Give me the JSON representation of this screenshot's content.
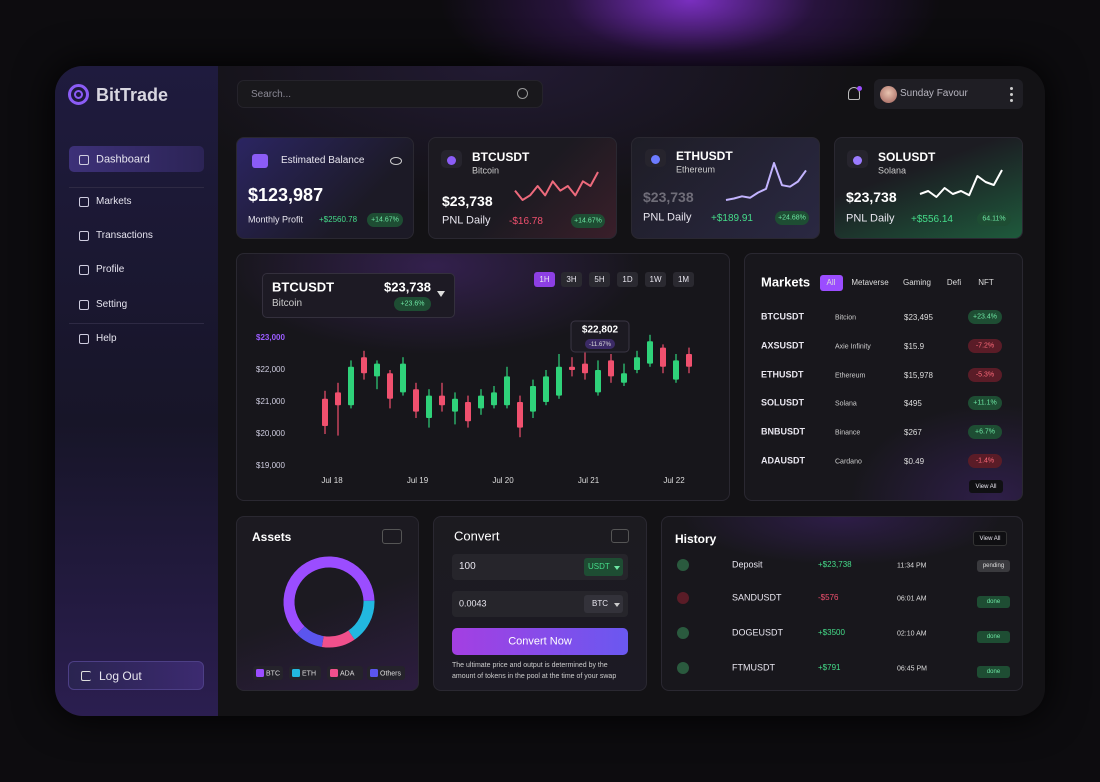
{
  "brand": "BitTrade",
  "search_placeholder": "Search...",
  "user_name": "Sunday Favour",
  "nav": [
    "Dashboard",
    "Markets",
    "Transactions",
    "Profile",
    "Setting",
    "Help"
  ],
  "logout": "Log Out",
  "balance": {
    "title": "Estimated Balance",
    "amount": "$123,987",
    "label": "Monthly Profit",
    "profit": "+$2560.78",
    "change": "+14.67%"
  },
  "tickers": [
    {
      "symbol": "BTCUSDT",
      "name": "Bitcoin",
      "price": "$23,738",
      "label": "PNL Daily",
      "pnl": "-$16.78",
      "change": "+14.67%"
    },
    {
      "symbol": "ETHUSDT",
      "name": "Ethereum",
      "price": "$23,738",
      "label": "PNL Daily",
      "pnl": "+$189.91",
      "change": "+24.68%"
    },
    {
      "symbol": "SOLUSDT",
      "name": "Solana",
      "price": "$23,738",
      "label": "PNL Daily",
      "pnl": "+$556.14",
      "change": "64.11%"
    }
  ],
  "chart_panel": {
    "symbol": "BTCUSDT",
    "name": "Bitcoin",
    "price": "$23,738",
    "change": "+23.6%",
    "ranges": [
      "1H",
      "3H",
      "5H",
      "1D",
      "1W",
      "1M"
    ],
    "tooltip_price": "$22,802",
    "tooltip_change": "-11.67%"
  },
  "markets": {
    "title": "Markets",
    "tabs": [
      "All",
      "Metaverse",
      "Gaming",
      "Defi",
      "NFT"
    ],
    "rows": [
      [
        "BTCUSDT",
        "Bitcion",
        "$23,495",
        "+23.4%"
      ],
      [
        "AXSUSDT",
        "Axie Infinity",
        "$15.9",
        "-7.2%"
      ],
      [
        "ETHUSDT",
        "Ethereum",
        "$15,978",
        "-5.3%"
      ],
      [
        "SOLUSDT",
        "Solana",
        "$495",
        "+11.1%"
      ],
      [
        "BNBUSDT",
        "Binance",
        "$267",
        "+6.7%"
      ],
      [
        "ADAUSDT",
        "Cardano",
        "$0.49",
        "-1.4%"
      ]
    ],
    "view_all": "View All"
  },
  "assets": {
    "title": "Assets"
  },
  "convert": {
    "title": "Convert",
    "amount_from": "100",
    "currency_from": "USDT",
    "amount_to": "0.0043",
    "currency_to": "BTC",
    "button": "Convert Now",
    "note": "The ultimate price and output is determined by the amount of tokens in the pool at the time of your swap"
  },
  "history": {
    "title": "History",
    "view_all": "View All",
    "rows": [
      [
        "Deposit",
        "+$23,738",
        "11:34 PM",
        "pending"
      ],
      [
        "SANDUSDT",
        "-$576",
        "06:01 AM",
        "done"
      ],
      [
        "DOGEUSDT",
        "+$3500",
        "02:10 AM",
        "done"
      ],
      [
        "FTMUSDT",
        "+$791",
        "06:45 PM",
        "done"
      ]
    ]
  },
  "chart_data": [
    {
      "type": "candlestick",
      "ylim": [
        19000,
        23000
      ],
      "yticks": [
        {
          "value": 19000,
          "label": "$19,000"
        },
        {
          "value": 20000,
          "label": "$20,000"
        },
        {
          "value": 21000,
          "label": "$21,000"
        },
        {
          "value": 22000,
          "label": "$22,000"
        },
        {
          "value": 23000,
          "label": "$23,000"
        }
      ],
      "x_labels": [
        "Jul 18",
        "Jul 19",
        "Jul 20",
        "Jul 21",
        "Jul 22"
      ],
      "up_color": "#2fd27a",
      "down_color": "#f0506e",
      "candles": [
        {
          "open": 21100,
          "high": 21350,
          "low": 20000,
          "close": 20250
        },
        {
          "open": 21300,
          "high": 21600,
          "low": 19950,
          "close": 20900
        },
        {
          "open": 20900,
          "high": 22300,
          "low": 20800,
          "close": 22100
        },
        {
          "open": 22400,
          "high": 22600,
          "low": 21700,
          "close": 21900
        },
        {
          "open": 21800,
          "high": 22300,
          "low": 21400,
          "close": 22200
        },
        {
          "open": 21900,
          "high": 22000,
          "low": 20800,
          "close": 21100
        },
        {
          "open": 21300,
          "high": 22400,
          "low": 21200,
          "close": 22200
        },
        {
          "open": 21400,
          "high": 21600,
          "low": 20500,
          "close": 20700
        },
        {
          "open": 20500,
          "high": 21400,
          "low": 20200,
          "close": 21200
        },
        {
          "open": 21200,
          "high": 21600,
          "low": 20700,
          "close": 20900
        },
        {
          "open": 20700,
          "high": 21300,
          "low": 20300,
          "close": 21100
        },
        {
          "open": 21000,
          "high": 21200,
          "low": 20200,
          "close": 20400
        },
        {
          "open": 20800,
          "high": 21400,
          "low": 20600,
          "close": 21200
        },
        {
          "open": 20900,
          "high": 21500,
          "low": 20800,
          "close": 21300
        },
        {
          "open": 20900,
          "high": 22100,
          "low": 20800,
          "close": 21800
        },
        {
          "open": 21000,
          "high": 21200,
          "low": 19900,
          "close": 20200
        },
        {
          "open": 20700,
          "high": 21700,
          "low": 20500,
          "close": 21500
        },
        {
          "open": 21000,
          "high": 22000,
          "low": 20900,
          "close": 21800
        },
        {
          "open": 21200,
          "high": 22500,
          "low": 21100,
          "close": 22100
        },
        {
          "open": 22100,
          "high": 22400,
          "low": 21800,
          "close": 22000
        },
        {
          "open": 22200,
          "high": 22600,
          "low": 21700,
          "close": 21900
        },
        {
          "open": 21300,
          "high": 22300,
          "low": 21200,
          "close": 22000
        },
        {
          "open": 22300,
          "high": 22500,
          "low": 21600,
          "close": 21800
        },
        {
          "open": 21600,
          "high": 22200,
          "low": 21500,
          "close": 21900
        },
        {
          "open": 22000,
          "high": 22600,
          "low": 21900,
          "close": 22400
        },
        {
          "open": 22200,
          "high": 23100,
          "low": 22100,
          "close": 22900
        },
        {
          "open": 22700,
          "high": 22800,
          "low": 21900,
          "close": 22100
        },
        {
          "open": 21700,
          "high": 22500,
          "low": 21600,
          "close": 22300
        },
        {
          "open": 22500,
          "high": 22700,
          "low": 21900,
          "close": 22100
        }
      ]
    },
    {
      "type": "pie",
      "categories": [
        "BTC",
        "ETH",
        "ADA",
        "Others"
      ],
      "values": [
        62,
        16,
        12,
        10
      ],
      "colors": [
        "#9b4dff",
        "#22b8e0",
        "#f0508c",
        "#5b55ee"
      ]
    },
    {
      "type": "line",
      "values": [
        5,
        3,
        4,
        6,
        4,
        7,
        5,
        6,
        4,
        7,
        6,
        9
      ],
      "color": "#ee6a7c"
    },
    {
      "type": "line",
      "values": [
        1,
        1.2,
        1.5,
        1.3,
        2,
        2.5,
        6,
        3,
        2.8,
        3.5,
        5
      ],
      "color": "#c3b4ff"
    },
    {
      "type": "line",
      "values": [
        2,
        2.5,
        1.5,
        3,
        2,
        2.5,
        1.8,
        5,
        4,
        3.5,
        6
      ],
      "color": "#ffffff"
    }
  ]
}
